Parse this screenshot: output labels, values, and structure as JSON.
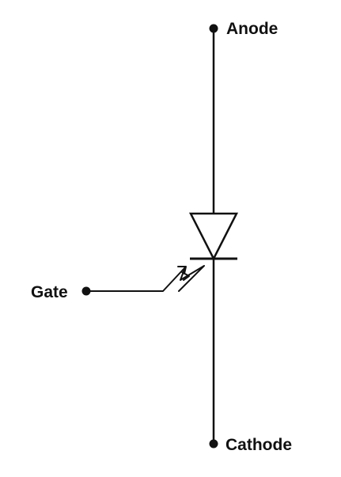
{
  "diagram": {
    "terminals": {
      "anode": "Anode",
      "cathode": "Cathode",
      "gate": "Gate"
    },
    "colors": {
      "stroke": "#111111",
      "background": "#ffffff"
    }
  }
}
